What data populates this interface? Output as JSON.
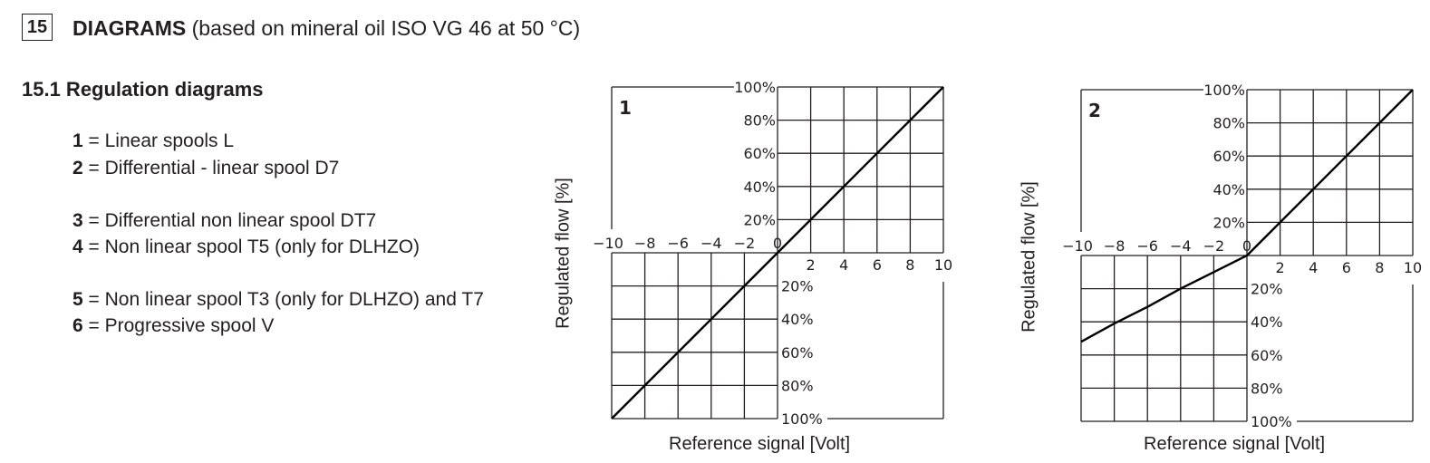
{
  "header": {
    "section_number": "15",
    "title_bold": "DIAGRAMS",
    "title_rest": " (based on mineral oil ISO VG 46 at 50 °C)"
  },
  "subsection": {
    "title": "15.1 Regulation diagrams"
  },
  "legend": [
    {
      "num": "1",
      "text": " = Linear spools L"
    },
    {
      "num": "2",
      "text": " = Differential - linear spool D7"
    },
    {
      "num": "3",
      "text": " = Differential non linear spool DT7"
    },
    {
      "num": "4",
      "text": " = Non linear spool T5 (only for DLHZO)"
    },
    {
      "num": "5",
      "text": " = Non linear spool T3 (only for DLHZO) and T7"
    },
    {
      "num": "6",
      "text": " = Progressive spool V"
    }
  ],
  "chart_data": [
    {
      "type": "line",
      "title": "1",
      "xlabel": "Reference signal [Volt]",
      "ylabel": "Regulated flow [%]",
      "xlim": [
        -10,
        10
      ],
      "ylim": [
        -100,
        100
      ],
      "x_ticks_negative": [
        "-10",
        "-8",
        "-6",
        "-4",
        "-2",
        "0"
      ],
      "x_ticks_positive": [
        "2",
        "4",
        "6",
        "8",
        "10"
      ],
      "y_ticks_positive": [
        "100%",
        "80%",
        "60%",
        "40%",
        "20%"
      ],
      "y_ticks_negative": [
        "20%",
        "40%",
        "60%",
        "80%",
        "100%"
      ],
      "grid": true,
      "series": [
        {
          "name": "Linear spools L",
          "x": [
            -10,
            -8,
            -6,
            -4,
            -2,
            0,
            2,
            4,
            6,
            8,
            10
          ],
          "y": [
            -100,
            -80,
            -60,
            -40,
            -20,
            0,
            20,
            40,
            60,
            80,
            100
          ]
        }
      ]
    },
    {
      "type": "line",
      "title": "2",
      "xlabel": "Reference signal [Volt]",
      "ylabel": "Regulated flow [%]",
      "xlim": [
        -10,
        10
      ],
      "ylim": [
        -100,
        100
      ],
      "x_ticks_negative": [
        "-10",
        "-8",
        "-6",
        "-4",
        "-2",
        "0"
      ],
      "x_ticks_positive": [
        "2",
        "4",
        "6",
        "8",
        "10"
      ],
      "y_ticks_positive": [
        "100%",
        "80%",
        "60%",
        "40%",
        "20%"
      ],
      "y_ticks_negative": [
        "20%",
        "40%",
        "60%",
        "80%",
        "100%"
      ],
      "grid": true,
      "series": [
        {
          "name": "Differential - linear spool D7",
          "x": [
            -10,
            -8,
            -6,
            -4,
            -2,
            0,
            2,
            4,
            6,
            8,
            10
          ],
          "y": [
            -52,
            -41,
            -31,
            -20,
            -10,
            0,
            20,
            40,
            60,
            80,
            100
          ]
        }
      ]
    }
  ]
}
